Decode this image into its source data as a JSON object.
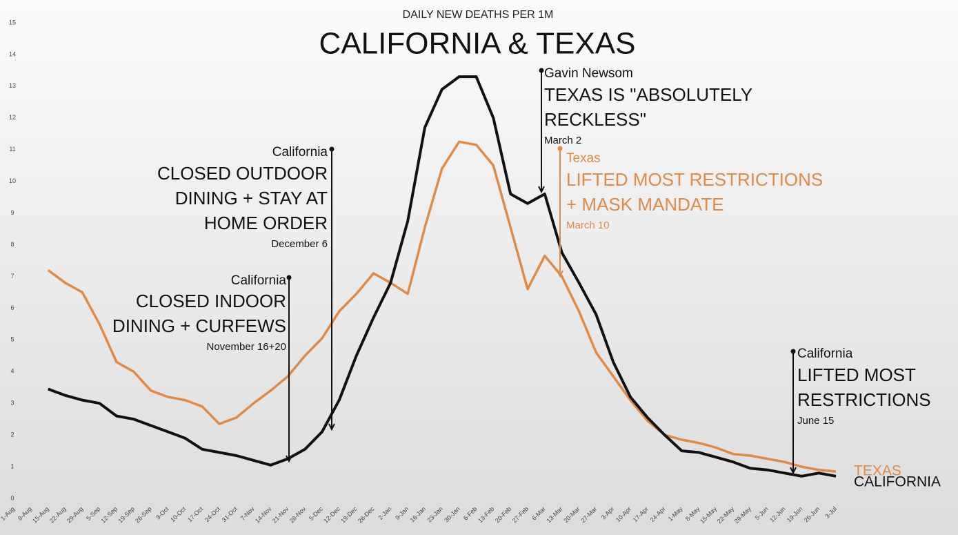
{
  "chart_data": {
    "type": "line",
    "subtitle": "DAILY NEW DEATHS PER 1M",
    "title": "CALIFORNIA & TEXAS",
    "categories": [
      "1-Aug",
      "8-Aug",
      "15-Aug",
      "22-Aug",
      "29-Aug",
      "5-Sep",
      "12-Sep",
      "19-Sep",
      "26-Sep",
      "3-Oct",
      "10-Oct",
      "17-Oct",
      "24-Oct",
      "31-Oct",
      "7-Nov",
      "14-Nov",
      "21-Nov",
      "28-Nov",
      "5-Dec",
      "12-Dec",
      "19-Dec",
      "26-Dec",
      "2-Jan",
      "9-Jan",
      "16-Jan",
      "23-Jan",
      "30-Jan",
      "6-Feb",
      "13-Feb",
      "20-Feb",
      "27-Feb",
      "6-Mar",
      "13-Mar",
      "20-Mar",
      "27-Mar",
      "3-Apr",
      "10-Apr",
      "17-Apr",
      "24-Apr",
      "1-May",
      "8-May",
      "15-May",
      "22-May",
      "29-May",
      "5-Jun",
      "12-Jun",
      "19-Jun",
      "26-Jun",
      "3-Jul"
    ],
    "series": [
      {
        "name": "TEXAS",
        "color": "#e08a48",
        "values": [
          null,
          null,
          7.2,
          6.8,
          6.5,
          5.5,
          4.3,
          4.0,
          3.4,
          3.2,
          3.1,
          2.9,
          2.35,
          2.55,
          3.0,
          3.4,
          3.85,
          4.5,
          5.05,
          5.9,
          6.45,
          7.1,
          6.8,
          6.45,
          8.55,
          10.4,
          11.25,
          11.15,
          10.5,
          8.55,
          6.6,
          7.65,
          7.0,
          5.9,
          4.6,
          3.85,
          3.1,
          2.45,
          2.0,
          1.85,
          1.75,
          1.6,
          1.4,
          1.35,
          1.25,
          1.15,
          1.0,
          0.9,
          0.85
        ]
      },
      {
        "name": "CALIFORNIA",
        "color": "#111111",
        "values": [
          null,
          null,
          3.45,
          3.25,
          3.1,
          3.0,
          2.6,
          2.5,
          2.3,
          2.1,
          1.9,
          1.55,
          1.45,
          1.35,
          1.2,
          1.05,
          1.25,
          1.55,
          2.1,
          3.1,
          4.5,
          5.7,
          6.8,
          8.75,
          11.7,
          12.9,
          13.3,
          13.3,
          12.0,
          9.6,
          9.3,
          9.6,
          7.75,
          6.8,
          5.8,
          4.3,
          3.2,
          2.55,
          2.0,
          1.5,
          1.45,
          1.3,
          1.15,
          0.95,
          0.9,
          0.8,
          0.7,
          0.8,
          0.7
        ]
      }
    ],
    "ylim": [
      0,
      15
    ],
    "yticks": [
      0,
      1,
      2,
      3,
      4,
      5,
      6,
      7,
      8,
      9,
      10,
      11,
      12,
      13,
      14,
      15
    ],
    "grid": false,
    "annotations": [
      {
        "label": "California",
        "lines": [
          "CLOSED INDOOR",
          "DINING + CURFEWS"
        ],
        "date": "November 16+20",
        "color": "#111111"
      },
      {
        "label": "California",
        "lines": [
          "CLOSED OUTDOOR",
          "DINING + STAY AT",
          "HOME ORDER"
        ],
        "date": "December 6",
        "color": "#111111"
      },
      {
        "label": "Gavin Newsom",
        "lines": [
          "TEXAS IS \"ABSOLUTELY",
          "RECKLESS\""
        ],
        "date": "March 2",
        "color": "#111111"
      },
      {
        "label": "Texas",
        "lines": [
          "LIFTED MOST RESTRICTIONS",
          "+ MASK MANDATE"
        ],
        "date": "March 10",
        "color": "#e08a48"
      },
      {
        "label": "California",
        "lines": [
          "LIFTED MOST",
          "RESTRICTIONS"
        ],
        "date": "June 15",
        "color": "#111111"
      }
    ]
  }
}
